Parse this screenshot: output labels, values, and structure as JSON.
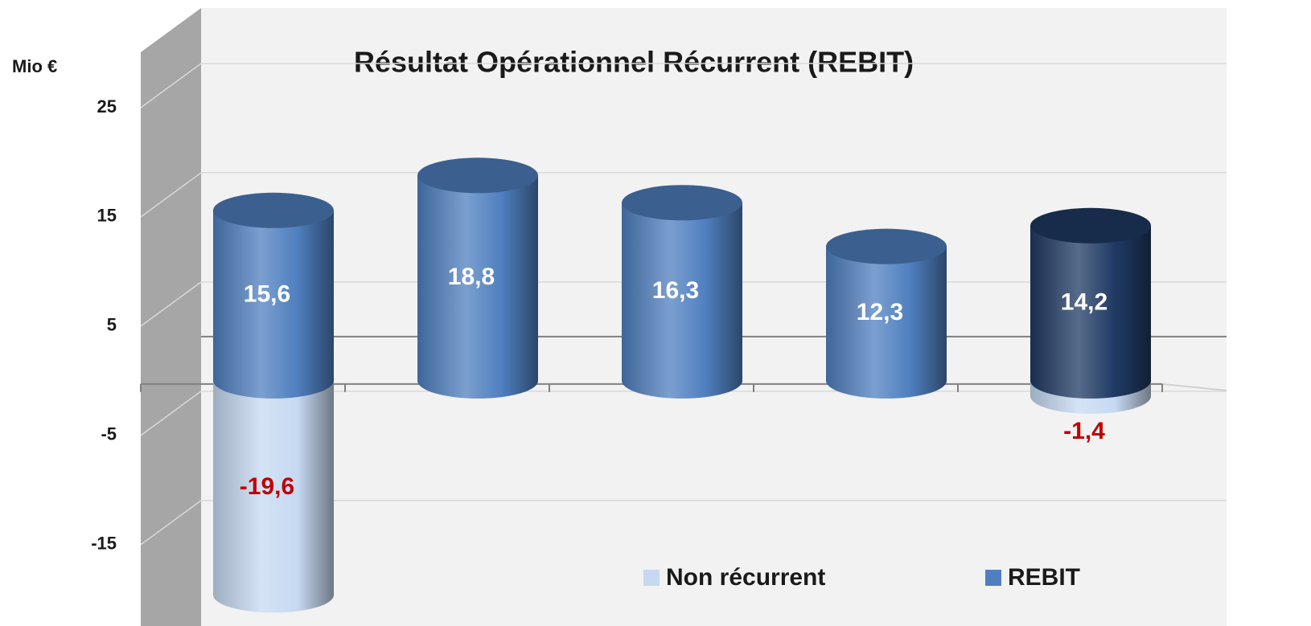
{
  "chart_data": {
    "type": "bar",
    "stacked": true,
    "title": "Résultat Opérationnel Récurrent (REBIT)",
    "y_label": "Mio €",
    "categories": [
      null,
      null,
      null,
      null,
      null
    ],
    "series": [
      {
        "name": "Non récurrent",
        "color": "#c6d9f1",
        "label_color": "#c00000",
        "values": [
          -19.6,
          null,
          null,
          null,
          -1.4
        ],
        "value_labels": [
          "-19,6",
          null,
          null,
          null,
          "-1,4"
        ]
      },
      {
        "name": "REBIT",
        "color": "#4f7fbf",
        "label_color": "#ffffff",
        "colors": [
          "#4f7fbf",
          "#4f7fbf",
          "#4f7fbf",
          "#4f7fbf",
          "#1f3a63"
        ],
        "values": [
          15.6,
          18.8,
          16.3,
          12.3,
          14.2
        ],
        "value_labels": [
          "15,6",
          "18,8",
          "16,3",
          "12,3",
          "14,2"
        ]
      }
    ],
    "ylim": [
      -22,
      34
    ],
    "yticks": [
      -15,
      -5,
      5,
      15,
      25
    ],
    "grid": true,
    "legend": "bottom"
  }
}
